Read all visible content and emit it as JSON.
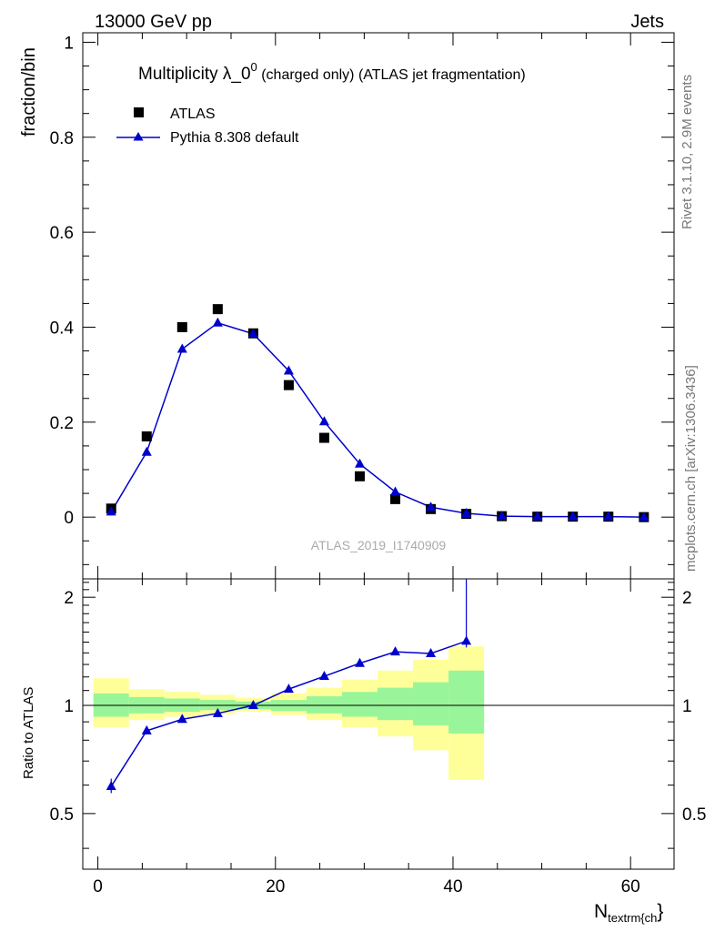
{
  "header": {
    "left": "13000 GeV pp",
    "right": "Jets"
  },
  "side_labels": {
    "rivet": "Rivet 3.1.10,  2.9M events",
    "mcplots": "mcplots.cern.ch [arXiv:1306.3436]"
  },
  "title": {
    "main": "Multiplicity λ_0",
    "sup": "0",
    "tail": " (charged only) (ATLAS jet fragmentation)"
  },
  "legend": {
    "data_label": "ATLAS",
    "mc_label": "Pythia 8.308 default"
  },
  "analysis_id": "ATLAS_2019_I1740909",
  "colors": {
    "mc_line": "#0000cc",
    "data_marker": "#000000",
    "band_stat": "#99f599",
    "band_total": "#ffff99"
  },
  "chart_data": [
    {
      "type": "scatter",
      "panel": "main",
      "ylabel": "fraction/bin",
      "xlim": [
        -1.7,
        64.9
      ],
      "ylim": [
        -0.13,
        1.02
      ],
      "yticks": [
        0,
        0.2,
        0.4,
        0.6,
        0.8,
        1
      ],
      "ytick_labels": [
        "0",
        "0.2",
        "0.4",
        "0.6",
        "0.8",
        "1"
      ],
      "series": [
        {
          "name": "ATLAS",
          "marker": "square",
          "x": [
            1.5,
            5.5,
            9.5,
            13.5,
            17.5,
            21.5,
            25.5,
            29.5,
            33.5,
            37.5,
            41.5,
            45.5,
            49.5,
            53.5,
            57.5,
            61.5
          ],
          "y": [
            0.018,
            0.17,
            0.4,
            0.438,
            0.387,
            0.278,
            0.167,
            0.086,
            0.038,
            0.017,
            0.007,
            0.002,
            0.001,
            0.001,
            0.001,
            0.0
          ]
        },
        {
          "name": "Pythia 8.308 default",
          "marker": "triangle",
          "x": [
            1.5,
            5.5,
            9.5,
            13.5,
            17.5,
            21.5,
            25.5,
            29.5,
            33.5,
            37.5,
            41.5,
            45.5,
            49.5,
            53.5,
            57.5,
            61.5
          ],
          "y": [
            0.011,
            0.137,
            0.354,
            0.409,
            0.386,
            0.308,
            0.201,
            0.112,
            0.053,
            0.021,
            0.008,
            0.002,
            0.001,
            0.001,
            0.001,
            0.0
          ]
        }
      ]
    },
    {
      "type": "line",
      "panel": "ratio",
      "ylabel": "Ratio to ATLAS",
      "xlabel": "N",
      "xlabel_sub": "textrm{ch",
      "xlabel_tail": "}",
      "xlim": [
        -1.7,
        64.9
      ],
      "ylim": [
        0.35,
        2.25
      ],
      "scale": "log",
      "xticks": [
        0,
        20,
        40,
        60
      ],
      "xtick_labels": [
        "0",
        "20",
        "40",
        "60"
      ],
      "yticks": [
        0.5,
        1,
        2
      ],
      "ytick_labels": [
        "0.5",
        "1",
        "2"
      ],
      "bands": {
        "edges": [
          -0.5,
          3.5,
          7.5,
          11.5,
          15.5,
          19.5,
          23.5,
          27.5,
          31.5,
          35.5,
          39.5,
          43.5
        ],
        "stat_lo": [
          0.93,
          0.95,
          0.96,
          0.97,
          0.975,
          0.965,
          0.95,
          0.93,
          0.91,
          0.88,
          0.835
        ],
        "stat_hi": [
          1.08,
          1.055,
          1.045,
          1.035,
          1.025,
          1.035,
          1.06,
          1.09,
          1.12,
          1.16,
          1.25
        ],
        "tot_lo": [
          0.87,
          0.91,
          0.93,
          0.945,
          0.96,
          0.94,
          0.91,
          0.87,
          0.82,
          0.75,
          0.62
        ],
        "tot_hi": [
          1.19,
          1.11,
          1.09,
          1.07,
          1.05,
          1.08,
          1.12,
          1.18,
          1.25,
          1.34,
          1.46
        ]
      },
      "series": [
        {
          "name": "Pythia 8.308 default",
          "x": [
            1.5,
            5.5,
            9.5,
            13.5,
            17.5,
            21.5,
            25.5,
            29.5,
            33.5,
            37.5,
            41.5
          ],
          "y": [
            0.595,
            0.85,
            0.915,
            0.95,
            1.0,
            1.11,
            1.205,
            1.31,
            1.41,
            1.395,
            1.51
          ],
          "err_hi": [
            0.03,
            0.02,
            0.015,
            0.012,
            0.01,
            0.012,
            0.015,
            0.02,
            0.02,
            0.03,
            1.2
          ],
          "err_lo": [
            0.025,
            0.015,
            0.012,
            0.01,
            0.01,
            0.01,
            0.012,
            0.015,
            0.02,
            0.03,
            0.06
          ]
        }
      ]
    }
  ]
}
